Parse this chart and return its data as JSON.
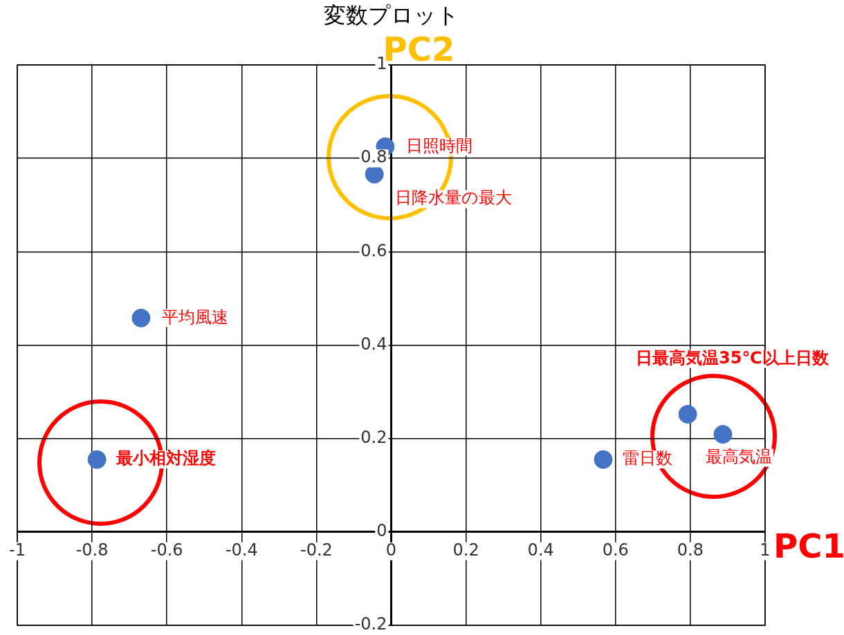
{
  "chart_data": {
    "type": "scatter",
    "title": "変数プロット",
    "xlabel": "PC1",
    "ylabel": "PC2",
    "x": [
      -0.016,
      -0.045,
      -0.669,
      -0.787,
      0.567,
      0.793,
      0.887
    ],
    "series": [
      {
        "color": "#4472c4",
        "values": [
          0.825,
          0.766,
          0.458,
          0.155,
          0.155,
          0.252,
          0.209
        ]
      }
    ],
    "xlim": [
      -1,
      1
    ],
    "xticks": [
      -1,
      -0.8,
      -0.6,
      -0.4,
      -0.2,
      0,
      0.2,
      0.4,
      0.6,
      0.8,
      1
    ],
    "ylim": [
      -0.2,
      1
    ],
    "yticks": [
      -0.2,
      0,
      0.2,
      0.4,
      0.6,
      0.8,
      1
    ],
    "grid": true,
    "marker": "circle",
    "legend": false,
    "annotations": [
      {
        "text": "日照時間",
        "x": -0.016,
        "y": 0.825
      },
      {
        "text": "日降水量の最大",
        "x": -0.045,
        "y": 0.766
      },
      {
        "text": "平均風速",
        "x": -0.669,
        "y": 0.458
      },
      {
        "text": "最小相対湿度",
        "x": -0.787,
        "y": 0.155
      },
      {
        "text": "雷日数",
        "x": 0.567,
        "y": 0.155
      },
      {
        "text": "日最高気温35℃以上日数",
        "x": 0.793,
        "y": 0.252
      },
      {
        "text": "最高気温",
        "x": 0.887,
        "y": 0.209
      }
    ]
  }
}
